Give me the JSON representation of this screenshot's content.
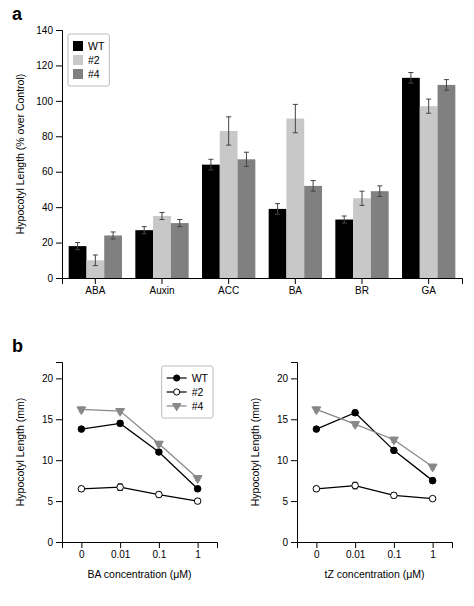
{
  "chart_data": [
    {
      "type": "bar",
      "title": "a",
      "categories": [
        "ABA",
        "Auxin",
        "ACC",
        "BA",
        "BR",
        "GA"
      ],
      "ylabel": "Hypocotyl Length (% over Control)",
      "ylim": [
        0,
        140
      ],
      "yticks": [
        0,
        20,
        40,
        60,
        80,
        100,
        120,
        140
      ],
      "legend": "top-left",
      "series": [
        {
          "name": "WT",
          "color": "#000000",
          "values": [
            18,
            27,
            64,
            39,
            33,
            113
          ],
          "errors": [
            2,
            2,
            3,
            3,
            2,
            3
          ]
        },
        {
          "name": "#2",
          "color": "#c8c8c8",
          "values": [
            10,
            35,
            83,
            90,
            45,
            97
          ],
          "errors": [
            3,
            2,
            8,
            8,
            4,
            4
          ]
        },
        {
          "name": "#4",
          "color": "#808080",
          "values": [
            24,
            31,
            67,
            52,
            49,
            109
          ],
          "errors": [
            2,
            2,
            4,
            3,
            3,
            3
          ]
        }
      ]
    },
    {
      "type": "line",
      "title": "b",
      "categories": [
        "0",
        "0.01",
        "0.1",
        "1"
      ],
      "xlabel": "BA concentration (μM)",
      "ylabel": "Hypocotyl Length (mm)",
      "ylim": [
        0,
        22
      ],
      "yticks": [
        0,
        5,
        10,
        15,
        20
      ],
      "legend": "top-right",
      "series": [
        {
          "name": "WT",
          "color": "#000000",
          "marker": "circle",
          "values": [
            13.8,
            14.5,
            11.0,
            6.5
          ],
          "errors": [
            0.3,
            0.3,
            0.3,
            0.3
          ]
        },
        {
          "name": "#2",
          "color": "#000000",
          "marker": "circle-open",
          "values": [
            6.5,
            6.7,
            5.8,
            5.0
          ],
          "errors": [
            0.3,
            0.4,
            0.3,
            0.3
          ]
        },
        {
          "name": "#4",
          "color": "#888888",
          "marker": "triangle-down",
          "values": [
            16.2,
            16.0,
            12.0,
            7.8
          ],
          "errors": [
            0.3,
            0.3,
            0.3,
            0.3
          ]
        }
      ]
    },
    {
      "type": "line",
      "categories": [
        "0",
        "0.01",
        "0.1",
        "1"
      ],
      "xlabel": "tZ concentration (μM)",
      "ylabel": "Hypocotyl Length (mm)",
      "ylim": [
        0,
        22
      ],
      "yticks": [
        0,
        5,
        10,
        15,
        20
      ],
      "series": [
        {
          "name": "WT",
          "color": "#000000",
          "marker": "circle",
          "values": [
            13.8,
            15.8,
            11.2,
            7.5
          ],
          "errors": [
            0.3,
            0.3,
            0.3,
            0.3
          ]
        },
        {
          "name": "#2",
          "color": "#000000",
          "marker": "circle-open",
          "values": [
            6.5,
            6.9,
            5.7,
            5.3
          ],
          "errors": [
            0.3,
            0.4,
            0.3,
            0.2
          ]
        },
        {
          "name": "#4",
          "color": "#888888",
          "marker": "triangle-down",
          "values": [
            16.2,
            14.4,
            12.5,
            9.2
          ],
          "errors": [
            0.3,
            0.3,
            0.3,
            0.3
          ]
        }
      ]
    }
  ]
}
